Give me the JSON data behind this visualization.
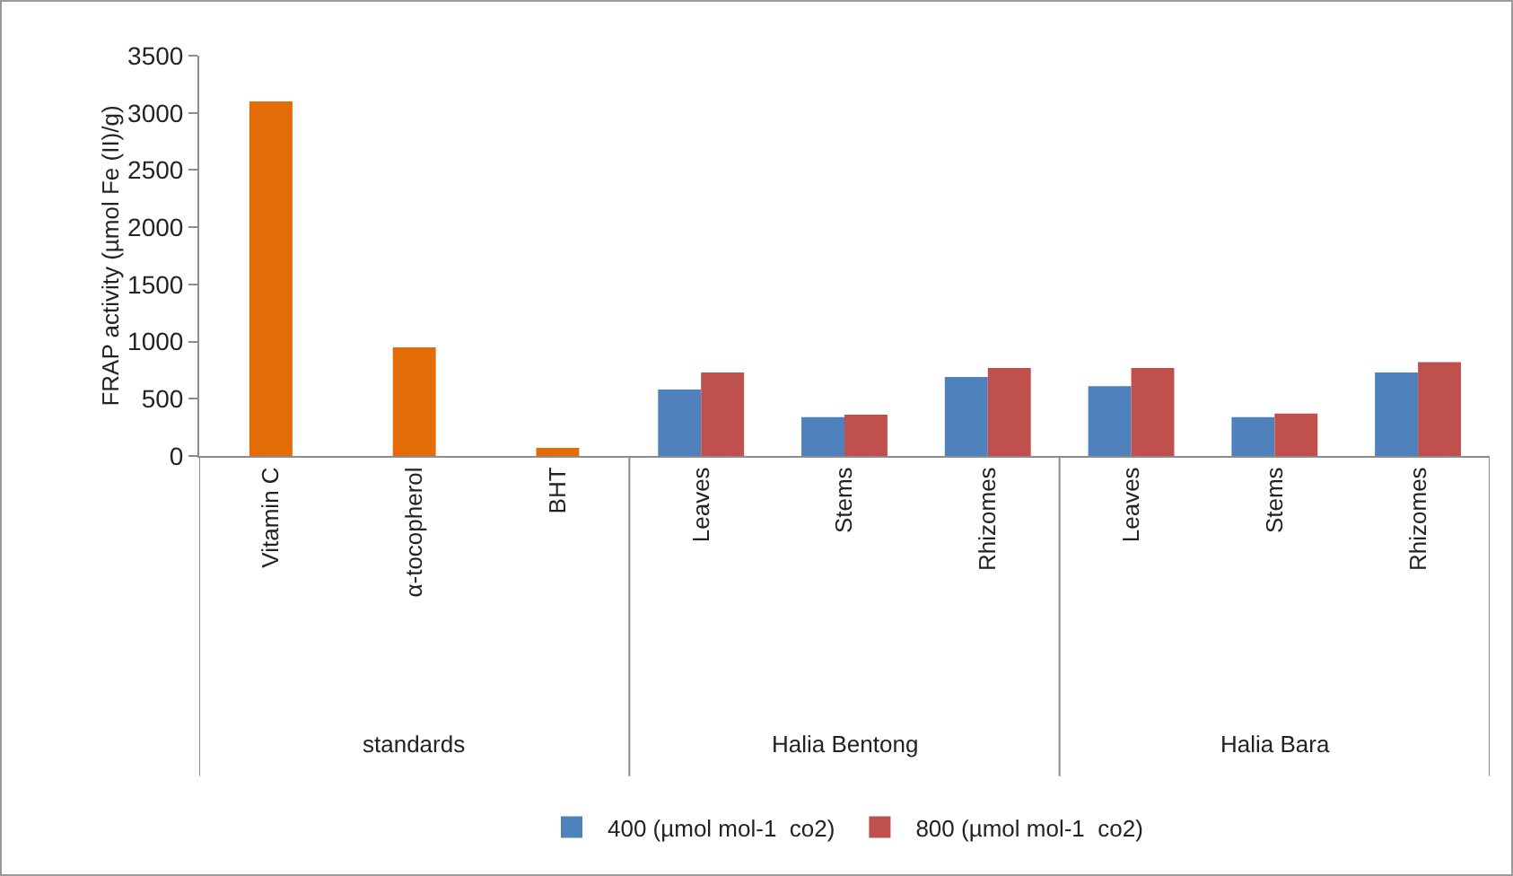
{
  "chart_data": {
    "type": "bar",
    "ylabel": "FRAP activity (µmol Fe (II)/g)",
    "categories": [
      "Vitamin C",
      "α-tocopherol",
      "BHT",
      "Leaves",
      "Stems",
      "Rhizomes",
      "Leaves",
      "Stems",
      "Rhizomes"
    ],
    "series": [
      {
        "color": "#e36c09",
        "values": [
          3100,
          950,
          70,
          null,
          null,
          null,
          null,
          null,
          null
        ]
      },
      {
        "name": "400 (µmol mol-1  co2)",
        "color": "#4f81bd",
        "values": [
          null,
          null,
          null,
          580,
          340,
          690,
          610,
          340,
          730
        ]
      },
      {
        "name": "800 (µmol mol-1  co2)",
        "color": "#c0504d",
        "values": [
          null,
          null,
          null,
          730,
          360,
          770,
          770,
          370,
          820
        ]
      }
    ],
    "annotations": [
      "standards",
      "Halia Bentong",
      "Halia Bara"
    ],
    "ylim": [
      0,
      3500
    ],
    "yticks": [
      0,
      500,
      1000,
      1500,
      2000,
      2500,
      3000,
      3500
    ],
    "grid": false,
    "legend": "bottom"
  }
}
